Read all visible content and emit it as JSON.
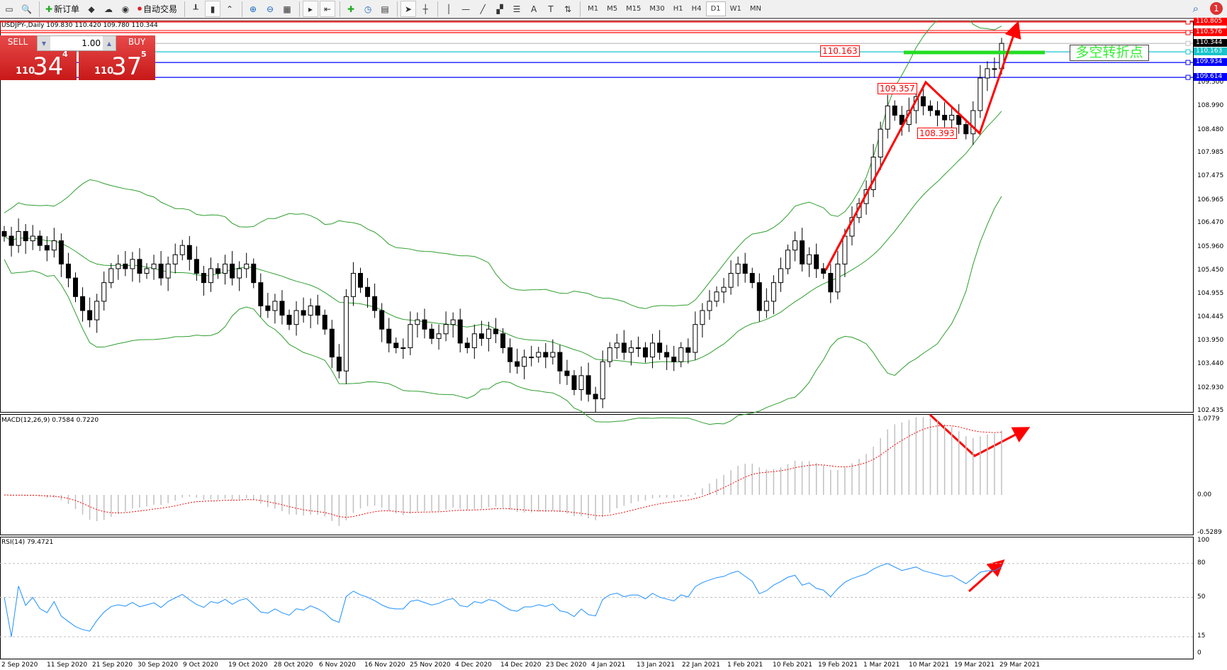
{
  "toolbar": {
    "new_order": "新订单",
    "auto_trading": "自动交易",
    "icons": [
      "window-icon",
      "zoom-window-icon",
      "new-order-icon",
      "book-icon",
      "cloud-icon",
      "signal-icon",
      "auto-trading-icon",
      "bar-chart-icon",
      "candle-chart-icon",
      "line-chart-icon",
      "zoom-in-icon",
      "zoom-out-icon",
      "tile-icon",
      "autoscroll-icon",
      "chart-shift-icon",
      "add-indicator-icon",
      "clock-icon",
      "template-icon",
      "cursor-icon",
      "crosshair-icon",
      "vertical-line-icon",
      "horizontal-line-icon",
      "trend-line-icon",
      "fibo-channel-icon",
      "fibo-icon",
      "text-icon",
      "text-label-icon",
      "arrows-icon"
    ],
    "timeframes": [
      "M1",
      "M5",
      "M15",
      "M30",
      "H1",
      "H4",
      "D1",
      "W1",
      "MN"
    ],
    "active_timeframe": "D1",
    "notifications": "1"
  },
  "symbol_header": "USDJPY-,Daily  109.830 110.420 109.780 110.344",
  "trade_panel": {
    "sell_label": "SELL",
    "buy_label": "BUY",
    "lot": "1.00",
    "sell_big": "110",
    "sell_main": "34",
    "sell_sup": "4",
    "buy_big": "110",
    "buy_main": "37",
    "buy_sup": "5"
  },
  "annotations": {
    "label1": "110.163",
    "label2": "109.357",
    "label3": "108.393",
    "turning_point": "多空转折点"
  },
  "price_axis": [
    "110.805",
    "110.576",
    "110.344",
    "110.163",
    "109.934",
    "109.614",
    "109.500",
    "108.990",
    "108.480",
    "107.985",
    "107.475",
    "106.965",
    "106.470",
    "105.960",
    "105.450",
    "104.955",
    "104.445",
    "103.950",
    "103.440",
    "102.930",
    "102.435"
  ],
  "price_tags": [
    {
      "v": "110.805",
      "color": "#ff0000"
    },
    {
      "v": "110.576",
      "color": "#ff0000"
    },
    {
      "v": "110.344",
      "color": "#000000"
    },
    {
      "v": "110.163",
      "color": "#19c4cc"
    },
    {
      "v": "109.934",
      "color": "#0000ff"
    },
    {
      "v": "109.614",
      "color": "#0000ff"
    }
  ],
  "macd": {
    "label": "MACD(12,26,9) 0.7584 0.7220",
    "axis": [
      "1.0779",
      "0.00",
      "-0.5289"
    ]
  },
  "rsi": {
    "label": "RSI(14) 79.4721",
    "axis": [
      "100",
      "80",
      "50",
      "15",
      "0"
    ]
  },
  "dates": [
    "2 Sep 2020",
    "11 Sep 2020",
    "21 Sep 2020",
    "30 Sep 2020",
    "9 Oct 2020",
    "19 Oct 2020",
    "28 Oct 2020",
    "6 Nov 2020",
    "16 Nov 2020",
    "25 Nov 2020",
    "4 Dec 2020",
    "14 Dec 2020",
    "23 Dec 2020",
    "4 Jan 2021",
    "13 Jan 2021",
    "22 Jan 2021",
    "1 Feb 2021",
    "10 Feb 2021",
    "19 Feb 2021",
    "1 Mar 2021",
    "10 Mar 2021",
    "19 Mar 2021",
    "29 Mar 2021"
  ],
  "chart_data": {
    "type": "candlestick",
    "symbol": "USDJPY-",
    "period": "Daily",
    "ylim": [
      102.435,
      110.805
    ],
    "closes": [
      106.2,
      106.0,
      106.3,
      106.1,
      106.2,
      106.0,
      105.9,
      106.1,
      105.6,
      105.3,
      104.9,
      104.6,
      104.4,
      104.8,
      105.2,
      105.5,
      105.6,
      105.5,
      105.7,
      105.4,
      105.5,
      105.6,
      105.3,
      105.6,
      105.8,
      106.0,
      105.7,
      105.4,
      105.2,
      105.5,
      105.4,
      105.6,
      105.3,
      105.5,
      105.6,
      105.2,
      104.7,
      104.6,
      104.8,
      104.5,
      104.3,
      104.6,
      104.5,
      104.7,
      104.5,
      104.2,
      103.6,
      103.3,
      104.9,
      105.4,
      105.1,
      104.9,
      104.6,
      104.2,
      103.9,
      103.8,
      103.8,
      104.3,
      104.4,
      104.2,
      104.0,
      104.1,
      104.3,
      104.4,
      103.9,
      103.8,
      104.1,
      104.0,
      104.2,
      104.1,
      103.8,
      103.5,
      103.4,
      103.6,
      103.6,
      103.7,
      103.6,
      103.7,
      103.3,
      103.2,
      102.9,
      103.2,
      102.8,
      102.7,
      103.5,
      103.8,
      103.9,
      103.7,
      103.8,
      103.8,
      103.6,
      103.9,
      103.7,
      103.6,
      103.5,
      103.8,
      103.7,
      104.3,
      104.6,
      104.8,
      105.0,
      105.1,
      105.4,
      105.6,
      105.4,
      105.2,
      104.6,
      104.8,
      105.2,
      105.5,
      105.9,
      106.1,
      105.6,
      105.8,
      105.5,
      105.4,
      105.0,
      105.6,
      106.2,
      106.6,
      106.9,
      107.2,
      107.9,
      108.5,
      109.0,
      108.8,
      108.6,
      108.9,
      109.2,
      109.0,
      108.9,
      108.8,
      108.7,
      108.8,
      108.6,
      108.4,
      108.9,
      109.6,
      109.8,
      109.8,
      110.344
    ],
    "horizontal_lines": [
      {
        "price": 110.805,
        "color": "#ff0000"
      },
      {
        "price": 110.576,
        "color": "#ff0000"
      },
      {
        "price": 110.344,
        "color": "#c0c0c0"
      },
      {
        "price": 110.163,
        "color": "#19c4cc"
      },
      {
        "price": 109.934,
        "color": "#0000ff"
      },
      {
        "price": 109.614,
        "color": "#0000ff"
      }
    ],
    "indicators": [
      "Bollinger Bands",
      "MACD(12,26,9)",
      "RSI(14)"
    ],
    "colors": {
      "bands": "#2e9e2e",
      "macd_signal": "#ff0000",
      "rsi": "#1e90ff",
      "arrows": "#ff0000",
      "green_line": "#22dd22"
    }
  }
}
